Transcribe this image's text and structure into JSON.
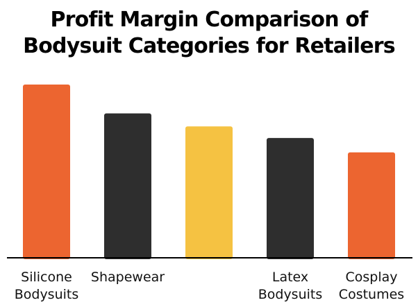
{
  "chart_data": {
    "type": "bar",
    "title": "Profit Margin Comparison of Bodysuit Categories for Retailers",
    "xlabel": "",
    "ylabel": "",
    "grid": false,
    "legend": "none",
    "ylim": [
      0,
      60
    ],
    "categories": [
      [
        "Silicone",
        "Bodysuits"
      ],
      [
        "Shapewear"
      ],
      [],
      [
        "Latex",
        "Bodysuits"
      ],
      [
        "Cosplay",
        "Costumes"
      ]
    ],
    "values": [
      60,
      50,
      45.5,
      41.5,
      36.5
    ],
    "colors": [
      "#EC6530",
      "#2E2E2E",
      "#F5C242",
      "#2E2E2E",
      "#EC6530"
    ]
  }
}
